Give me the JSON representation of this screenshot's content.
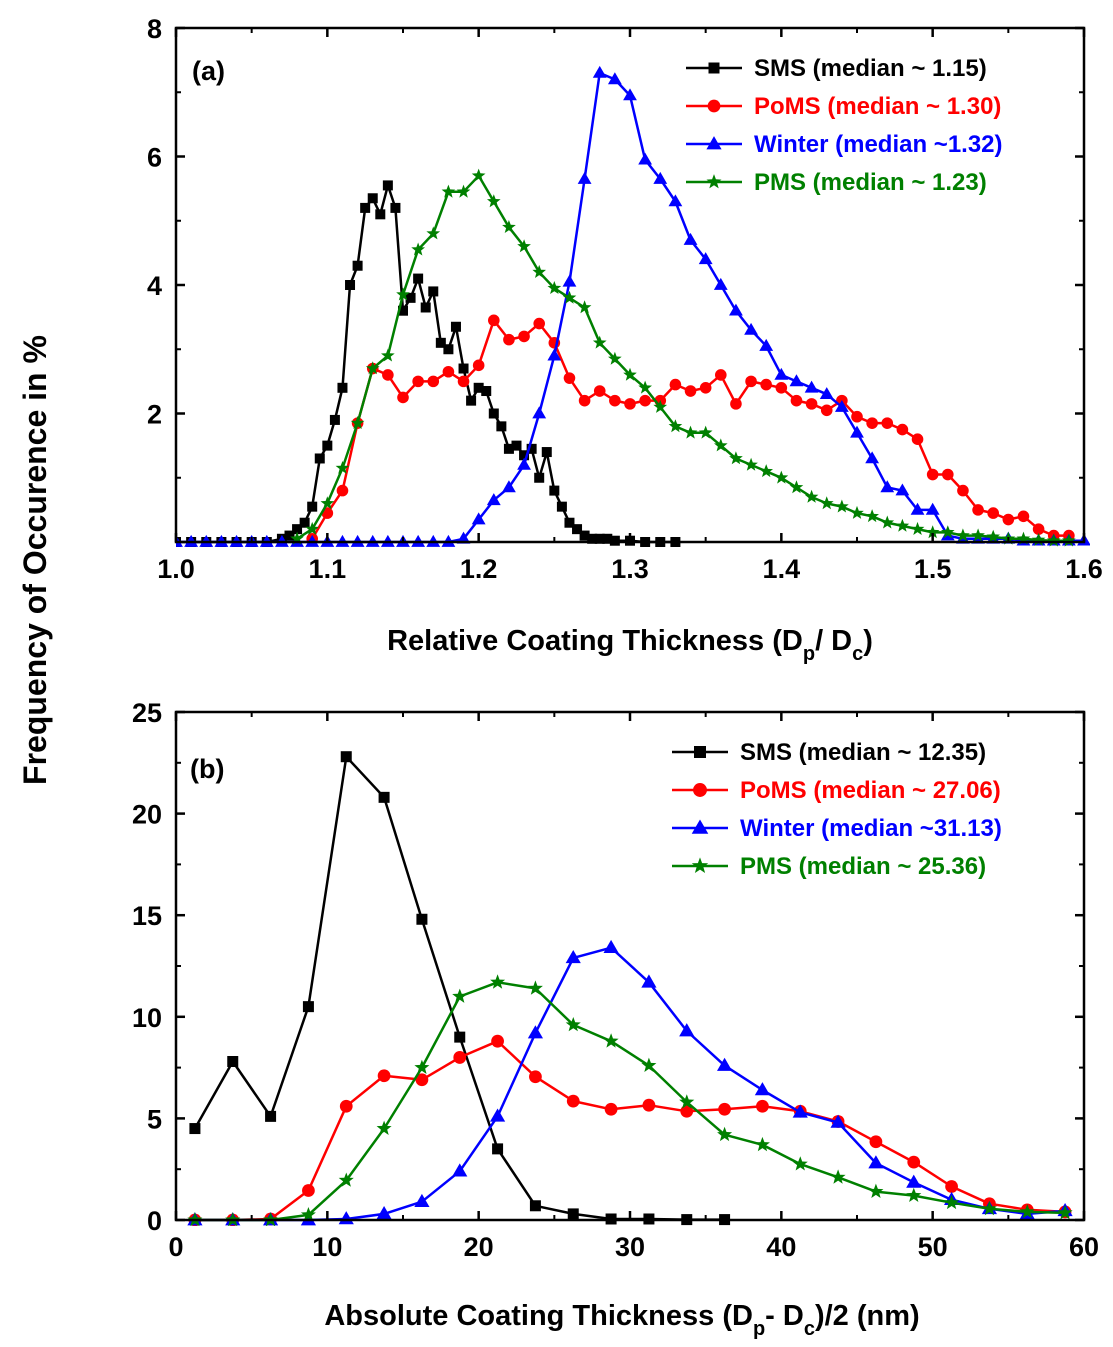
{
  "figure": {
    "ylabel": "Frequency of Occurence in %"
  },
  "chart_data": [
    {
      "type": "line",
      "panel_label": "(a)",
      "xlabel_main": "Relative Coating Thickness (D",
      "xlabel_sub1": "p",
      "xlabel_mid": "/ D",
      "xlabel_sub2": "c",
      "xlabel_end": ")",
      "xlim": [
        1.0,
        1.6
      ],
      "ylim": [
        0,
        8
      ],
      "xticks": [
        1.0,
        1.1,
        1.2,
        1.3,
        1.4,
        1.5,
        1.6
      ],
      "xtick_labels": [
        "1.0",
        "1.1",
        "1.2",
        "1.3",
        "1.4",
        "1.5",
        "1.6"
      ],
      "yticks": [
        2,
        4,
        6,
        8
      ],
      "ytick_labels": [
        "2",
        "4",
        "6",
        "8"
      ],
      "legend_position": "top-right",
      "series": [
        {
          "name": "SMS (median ~ 1.15)",
          "color": "#000000",
          "marker": "square",
          "x": [
            1.0,
            1.01,
            1.02,
            1.03,
            1.04,
            1.05,
            1.06,
            1.07,
            1.075,
            1.08,
            1.085,
            1.09,
            1.095,
            1.1,
            1.105,
            1.11,
            1.115,
            1.12,
            1.125,
            1.13,
            1.135,
            1.14,
            1.145,
            1.15,
            1.155,
            1.16,
            1.165,
            1.17,
            1.175,
            1.18,
            1.185,
            1.19,
            1.195,
            1.2,
            1.205,
            1.21,
            1.215,
            1.22,
            1.225,
            1.23,
            1.235,
            1.24,
            1.245,
            1.25,
            1.255,
            1.26,
            1.265,
            1.27,
            1.275,
            1.28,
            1.285,
            1.29,
            1.3,
            1.31,
            1.32,
            1.33
          ],
          "y": [
            0,
            0,
            0,
            0,
            0,
            0,
            0,
            0.05,
            0.1,
            0.2,
            0.3,
            0.55,
            1.3,
            1.5,
            1.9,
            2.4,
            4.0,
            4.3,
            5.2,
            5.35,
            5.1,
            5.55,
            5.2,
            3.6,
            3.8,
            4.1,
            3.65,
            3.9,
            3.1,
            3.0,
            3.35,
            2.7,
            2.2,
            2.4,
            2.35,
            2.0,
            1.8,
            1.45,
            1.5,
            1.35,
            1.45,
            1.0,
            1.4,
            0.8,
            0.55,
            0.3,
            0.2,
            0.1,
            0.05,
            0.05,
            0.05,
            0.02,
            0.02,
            0,
            0,
            0
          ]
        },
        {
          "name": "PoMS (median ~ 1.30)",
          "color": "#ff0000",
          "marker": "circle",
          "x": [
            1.09,
            1.1,
            1.11,
            1.12,
            1.13,
            1.14,
            1.15,
            1.16,
            1.17,
            1.18,
            1.19,
            1.2,
            1.21,
            1.22,
            1.23,
            1.24,
            1.25,
            1.26,
            1.27,
            1.28,
            1.29,
            1.3,
            1.31,
            1.32,
            1.33,
            1.34,
            1.35,
            1.36,
            1.37,
            1.38,
            1.39,
            1.4,
            1.41,
            1.42,
            1.43,
            1.44,
            1.45,
            1.46,
            1.47,
            1.48,
            1.49,
            1.5,
            1.51,
            1.52,
            1.53,
            1.54,
            1.55,
            1.56,
            1.57,
            1.58,
            1.59
          ],
          "y": [
            0.05,
            0.45,
            0.8,
            1.85,
            2.7,
            2.6,
            2.25,
            2.5,
            2.5,
            2.65,
            2.5,
            2.75,
            3.45,
            3.15,
            3.2,
            3.4,
            3.1,
            2.55,
            2.2,
            2.35,
            2.2,
            2.15,
            2.2,
            2.2,
            2.45,
            2.35,
            2.4,
            2.6,
            2.15,
            2.5,
            2.45,
            2.4,
            2.2,
            2.15,
            2.05,
            2.2,
            1.95,
            1.85,
            1.85,
            1.75,
            1.6,
            1.05,
            1.05,
            0.8,
            0.5,
            0.45,
            0.35,
            0.4,
            0.2,
            0.1,
            0.1
          ]
        },
        {
          "name": "Winter (median ~1.32)",
          "color": "#0000ff",
          "marker": "triangle",
          "x": [
            1.0,
            1.01,
            1.02,
            1.03,
            1.04,
            1.05,
            1.06,
            1.07,
            1.08,
            1.09,
            1.1,
            1.11,
            1.12,
            1.13,
            1.14,
            1.15,
            1.16,
            1.17,
            1.18,
            1.19,
            1.2,
            1.21,
            1.22,
            1.23,
            1.24,
            1.25,
            1.26,
            1.27,
            1.28,
            1.29,
            1.3,
            1.31,
            1.32,
            1.33,
            1.34,
            1.35,
            1.36,
            1.37,
            1.38,
            1.39,
            1.4,
            1.41,
            1.42,
            1.43,
            1.44,
            1.45,
            1.46,
            1.47,
            1.48,
            1.49,
            1.5,
            1.51,
            1.52,
            1.53,
            1.54,
            1.55,
            1.56,
            1.57,
            1.58,
            1.59,
            1.6
          ],
          "y": [
            0,
            0,
            0,
            0,
            0,
            0,
            0,
            0,
            0,
            0,
            0,
            0,
            0,
            0,
            0,
            0,
            0,
            0,
            0,
            0.05,
            0.35,
            0.65,
            0.85,
            1.2,
            2.0,
            2.9,
            4.05,
            5.65,
            7.3,
            7.2,
            6.95,
            5.95,
            5.65,
            5.3,
            4.7,
            4.4,
            4.0,
            3.6,
            3.3,
            3.05,
            2.6,
            2.5,
            2.4,
            2.3,
            2.1,
            1.7,
            1.3,
            0.85,
            0.8,
            0.5,
            0.5,
            0.1,
            0.05,
            0.05,
            0.05,
            0.05,
            0.02,
            0.02,
            0.02,
            0.02,
            0.02
          ]
        },
        {
          "name": "PMS (median ~ 1.23)",
          "color": "#008000",
          "marker": "star",
          "x": [
            1.08,
            1.09,
            1.1,
            1.11,
            1.12,
            1.13,
            1.14,
            1.15,
            1.16,
            1.17,
            1.18,
            1.19,
            1.2,
            1.21,
            1.22,
            1.23,
            1.24,
            1.25,
            1.26,
            1.27,
            1.28,
            1.29,
            1.3,
            1.31,
            1.32,
            1.33,
            1.34,
            1.35,
            1.36,
            1.37,
            1.38,
            1.39,
            1.4,
            1.41,
            1.42,
            1.43,
            1.44,
            1.45,
            1.46,
            1.47,
            1.48,
            1.49,
            1.5,
            1.51,
            1.52,
            1.53,
            1.54,
            1.55,
            1.56,
            1.57,
            1.58,
            1.59
          ],
          "y": [
            0.05,
            0.2,
            0.6,
            1.15,
            1.85,
            2.7,
            2.9,
            3.85,
            4.55,
            4.8,
            5.45,
            5.45,
            5.7,
            5.3,
            4.9,
            4.6,
            4.2,
            3.95,
            3.8,
            3.65,
            3.1,
            2.85,
            2.6,
            2.4,
            2.1,
            1.8,
            1.7,
            1.7,
            1.5,
            1.3,
            1.2,
            1.1,
            1.0,
            0.85,
            0.7,
            0.6,
            0.55,
            0.45,
            0.4,
            0.3,
            0.25,
            0.2,
            0.15,
            0.15,
            0.1,
            0.1,
            0.08,
            0.05,
            0.05,
            0.03,
            0.02,
            0.02
          ]
        }
      ]
    },
    {
      "type": "line",
      "panel_label": "(b)",
      "xlabel_main": "Absolute Coating Thickness  (D",
      "xlabel_sub1": "p",
      "xlabel_mid": "- D",
      "xlabel_sub2": "c",
      "xlabel_end": ")/2 (nm)",
      "xlim": [
        0,
        60
      ],
      "ylim": [
        0,
        25
      ],
      "xticks": [
        0,
        10,
        20,
        30,
        40,
        50,
        60
      ],
      "xtick_labels": [
        "0",
        "10",
        "20",
        "30",
        "40",
        "50",
        "60"
      ],
      "yticks": [
        0,
        5,
        10,
        15,
        20,
        25
      ],
      "ytick_labels": [
        "0",
        "5",
        "10",
        "15",
        "20",
        "25"
      ],
      "legend_position": "top-right",
      "series": [
        {
          "name": "SMS (median ~ 12.35)",
          "color": "#000000",
          "marker": "square",
          "x": [
            1.25,
            3.75,
            6.25,
            8.75,
            11.25,
            13.75,
            16.25,
            18.75,
            21.25,
            23.75,
            26.25,
            28.75,
            31.25,
            33.75,
            36.25
          ],
          "y": [
            4.5,
            7.8,
            5.1,
            10.5,
            22.8,
            20.8,
            14.8,
            9.0,
            3.5,
            0.7,
            0.3,
            0.05,
            0.05,
            0.02,
            0.02
          ]
        },
        {
          "name": "PoMS (median ~ 27.06)",
          "color": "#ff0000",
          "marker": "circle",
          "x": [
            1.25,
            3.75,
            6.25,
            8.75,
            11.25,
            13.75,
            16.25,
            18.75,
            21.25,
            23.75,
            26.25,
            28.75,
            31.25,
            33.75,
            36.25,
            38.75,
            41.25,
            43.75,
            46.25,
            48.75,
            51.25,
            53.75,
            56.25,
            58.75
          ],
          "y": [
            0,
            0,
            0.05,
            1.45,
            5.6,
            7.1,
            6.9,
            8.0,
            8.8,
            7.05,
            5.85,
            5.45,
            5.65,
            5.35,
            5.45,
            5.6,
            5.35,
            4.85,
            3.85,
            2.85,
            1.65,
            0.8,
            0.5,
            0.4
          ]
        },
        {
          "name": "Winter (median ~31.13)",
          "color": "#0000ff",
          "marker": "triangle",
          "x": [
            1.25,
            3.75,
            6.25,
            8.75,
            11.25,
            13.75,
            16.25,
            18.75,
            21.25,
            23.75,
            26.25,
            28.75,
            31.25,
            33.75,
            36.25,
            38.75,
            41.25,
            43.75,
            46.25,
            48.75,
            51.25,
            53.75,
            56.25,
            58.75
          ],
          "y": [
            0,
            0,
            0,
            0,
            0.05,
            0.3,
            0.9,
            2.4,
            5.1,
            9.2,
            12.9,
            13.4,
            11.7,
            9.3,
            7.6,
            6.4,
            5.3,
            4.8,
            2.8,
            1.85,
            1.0,
            0.55,
            0.3,
            0.45
          ]
        },
        {
          "name": "PMS (median ~ 25.36)",
          "color": "#008000",
          "marker": "star",
          "x": [
            1.25,
            3.75,
            6.25,
            8.75,
            11.25,
            13.75,
            16.25,
            18.75,
            21.25,
            23.75,
            26.25,
            28.75,
            31.25,
            33.75,
            36.25,
            38.75,
            41.25,
            43.75,
            46.25,
            48.75,
            51.25,
            53.75,
            56.25,
            58.75
          ],
          "y": [
            0,
            0,
            0,
            0.25,
            1.95,
            4.5,
            7.5,
            11.0,
            11.7,
            11.4,
            9.6,
            8.8,
            7.6,
            5.8,
            4.2,
            3.7,
            2.75,
            2.1,
            1.4,
            1.2,
            0.85,
            0.55,
            0.4,
            0.35
          ]
        }
      ]
    }
  ]
}
